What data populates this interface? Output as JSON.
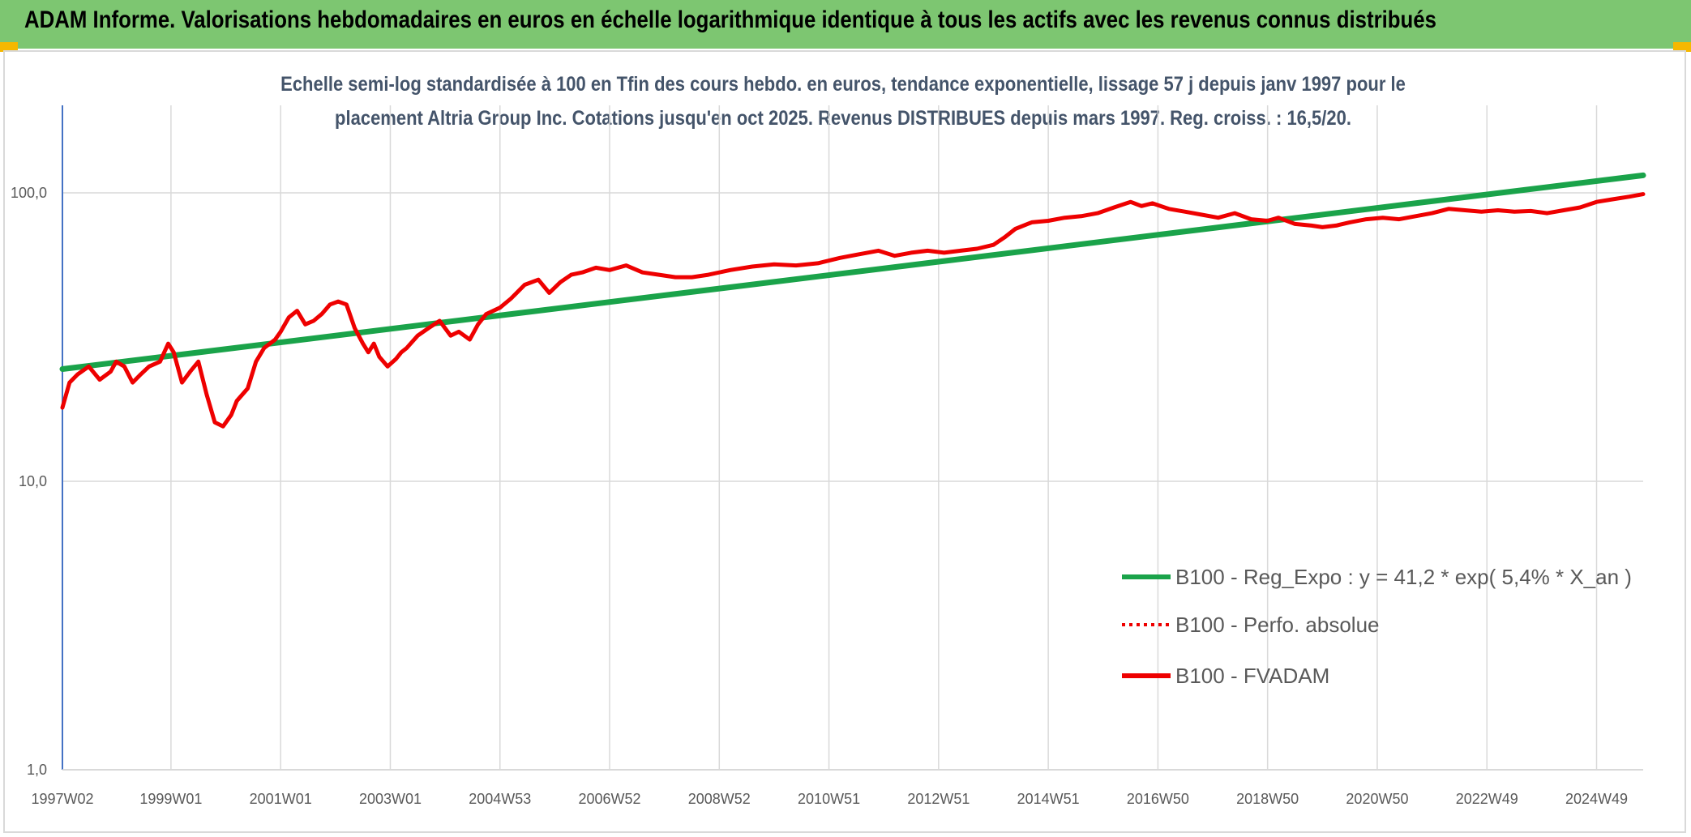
{
  "header": {
    "title": "ADAM Informe. Valorisations hebdomadaires en euros en échelle logarithmique identique à tous les actifs avec les revenus connus distribués"
  },
  "colors": {
    "header_bg": "#7dc671",
    "corner_accent": "#f5b800",
    "regression_line": "#1aa34a",
    "fvadam_line": "#ee0000",
    "perfo_line": "#ee0000"
  },
  "chart_data": {
    "type": "line",
    "title_line1": "Echelle semi-log standardisée à 100 en Tfin des cours hebdo. en euros, tendance exponentielle, lissage 57 j depuis janv 1997 pour le",
    "title_line2": "placement Altria Group Inc. Cotations jusqu'en oct 2025. Revenus DISTRIBUES depuis mars 1997. Reg. croiss. : 16,5/20.",
    "y_scale": "log",
    "ylim": [
      1,
      200
    ],
    "y_ticks": [
      {
        "value": 1,
        "label": "1,0"
      },
      {
        "value": 10,
        "label": "10,0"
      },
      {
        "value": 100,
        "label": "100,0"
      }
    ],
    "xlim": [
      1997.02,
      2025.85
    ],
    "x_ticks": [
      {
        "x": 1997.02,
        "label": "1997W02"
      },
      {
        "x": 1999.0,
        "label": "1999W01"
      },
      {
        "x": 2001.0,
        "label": "2001W01"
      },
      {
        "x": 2003.0,
        "label": "2003W01"
      },
      {
        "x": 2005.0,
        "label": "2004W53"
      },
      {
        "x": 2007.0,
        "label": "2006W52"
      },
      {
        "x": 2009.0,
        "label": "2008W52"
      },
      {
        "x": 2011.0,
        "label": "2010W51"
      },
      {
        "x": 2013.0,
        "label": "2012W51"
      },
      {
        "x": 2015.0,
        "label": "2014W51"
      },
      {
        "x": 2017.0,
        "label": "2016W50"
      },
      {
        "x": 2019.0,
        "label": "2018W50"
      },
      {
        "x": 2021.0,
        "label": "2020W50"
      },
      {
        "x": 2023.0,
        "label": "2022W49"
      },
      {
        "x": 2025.0,
        "label": "2024W49"
      }
    ],
    "grid": true,
    "legend_position": "bottom-right",
    "series": [
      {
        "name": "B100 - Reg_Expo : y = 41,2 * exp( 5,4% *  X_an )",
        "style": "solid-thick",
        "color": "#1aa34a",
        "x": [
          1997.02,
          2025.85
        ],
        "y": [
          24.5,
          115
        ]
      },
      {
        "name": "B100 - Perfo. absolue",
        "style": "dotted",
        "color": "#ee0000",
        "x": [],
        "y": []
      },
      {
        "name": "B100 - FVADAM",
        "style": "solid-thick",
        "color": "#ee0000",
        "x": [
          1997.02,
          1997.15,
          1997.3,
          1997.5,
          1997.7,
          1997.9,
          1998.0,
          1998.15,
          1998.3,
          1998.45,
          1998.6,
          1998.8,
          1998.95,
          1999.05,
          1999.2,
          1999.35,
          1999.5,
          1999.65,
          1999.8,
          1999.95,
          2000.1,
          2000.2,
          2000.4,
          2000.55,
          2000.7,
          2000.9,
          2001.0,
          2001.15,
          2001.3,
          2001.45,
          2001.6,
          2001.75,
          2001.9,
          2002.05,
          2002.2,
          2002.35,
          2002.5,
          2002.6,
          2002.7,
          2002.8,
          2002.95,
          2003.1,
          2003.2,
          2003.3,
          2003.5,
          2003.7,
          2003.9,
          2004.1,
          2004.25,
          2004.45,
          2004.6,
          2004.75,
          2005.0,
          2005.2,
          2005.45,
          2005.7,
          2005.9,
          2006.1,
          2006.3,
          2006.5,
          2006.75,
          2007.0,
          2007.3,
          2007.6,
          2007.9,
          2008.2,
          2008.5,
          2008.8,
          2009.2,
          2009.6,
          2010.0,
          2010.4,
          2010.8,
          2011.2,
          2011.5,
          2011.9,
          2012.2,
          2012.5,
          2012.8,
          2013.1,
          2013.4,
          2013.7,
          2014.0,
          2014.2,
          2014.4,
          2014.7,
          2015.0,
          2015.3,
          2015.6,
          2015.9,
          2016.2,
          2016.5,
          2016.7,
          2016.9,
          2017.2,
          2017.5,
          2017.8,
          2018.1,
          2018.4,
          2018.7,
          2019.0,
          2019.2,
          2019.5,
          2019.8,
          2020.0,
          2020.25,
          2020.5,
          2020.8,
          2021.1,
          2021.4,
          2021.7,
          2022.0,
          2022.3,
          2022.6,
          2022.9,
          2023.2,
          2023.5,
          2023.8,
          2024.1,
          2024.4,
          2024.7,
          2025.0,
          2025.3,
          2025.6,
          2025.85
        ],
        "y": [
          18,
          22,
          23.5,
          25,
          22.5,
          24,
          26,
          25,
          22,
          23.5,
          25,
          26,
          30,
          28,
          22,
          24,
          26,
          20,
          16,
          15.5,
          17,
          19,
          21,
          26,
          29,
          31,
          33,
          37,
          39,
          35,
          36,
          38,
          41,
          42,
          41,
          34,
          30,
          28,
          30,
          27,
          25,
          26.5,
          28,
          29,
          32,
          34,
          36,
          32,
          33,
          31,
          35,
          38,
          40,
          43,
          48,
          50,
          45,
          49,
          52,
          53,
          55,
          54,
          56,
          53,
          52,
          51,
          51,
          52,
          54,
          55.5,
          56.5,
          56,
          57,
          59.5,
          61,
          63,
          60.5,
          62,
          63,
          62,
          63,
          64,
          66,
          70,
          75,
          79,
          80,
          82,
          83,
          85,
          89,
          93,
          90,
          92,
          88,
          86,
          84,
          82,
          85,
          81,
          80,
          82,
          78,
          77,
          76,
          77,
          79,
          81,
          82,
          81,
          83,
          85,
          88,
          87,
          86,
          87,
          86,
          86.5,
          85,
          87,
          89,
          93,
          95,
          97,
          99
        ]
      }
    ],
    "legend": [
      {
        "label": "B100 - Reg_Expo : y = 41,2 * exp( 5,4% *  X_an )",
        "style": "solid",
        "color": "#1aa34a"
      },
      {
        "label": "B100 - Perfo. absolue",
        "style": "dotted",
        "color": "#ee0000"
      },
      {
        "label": "B100 - FVADAM",
        "style": "solid",
        "color": "#ee0000"
      }
    ]
  }
}
